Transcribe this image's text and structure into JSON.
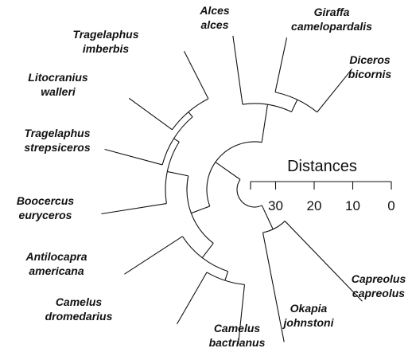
{
  "scale": {
    "title": "Distances",
    "ticks": [
      30,
      20,
      10,
      0
    ]
  },
  "taxa": [
    {
      "genus": "Alces",
      "species": "alces"
    },
    {
      "genus": "Giraffa",
      "species": "camelopardalis"
    },
    {
      "genus": "Diceros",
      "species": "bicornis"
    },
    {
      "genus": "Tragelaphus",
      "species": "imberbis"
    },
    {
      "genus": "Litocranius",
      "species": "walleri"
    },
    {
      "genus": "Tragelaphus",
      "species": "strepsiceros"
    },
    {
      "genus": "Boocercus",
      "species": "euryceros"
    },
    {
      "genus": "Antilocapra",
      "species": "americana"
    },
    {
      "genus": "Camelus",
      "species": "dromedarius"
    },
    {
      "genus": "Camelus",
      "species": "bactrianus"
    },
    {
      "genus": "Okapia",
      "species": "johnstoni"
    },
    {
      "genus": "Capreolus",
      "species": "capreolus"
    }
  ]
}
